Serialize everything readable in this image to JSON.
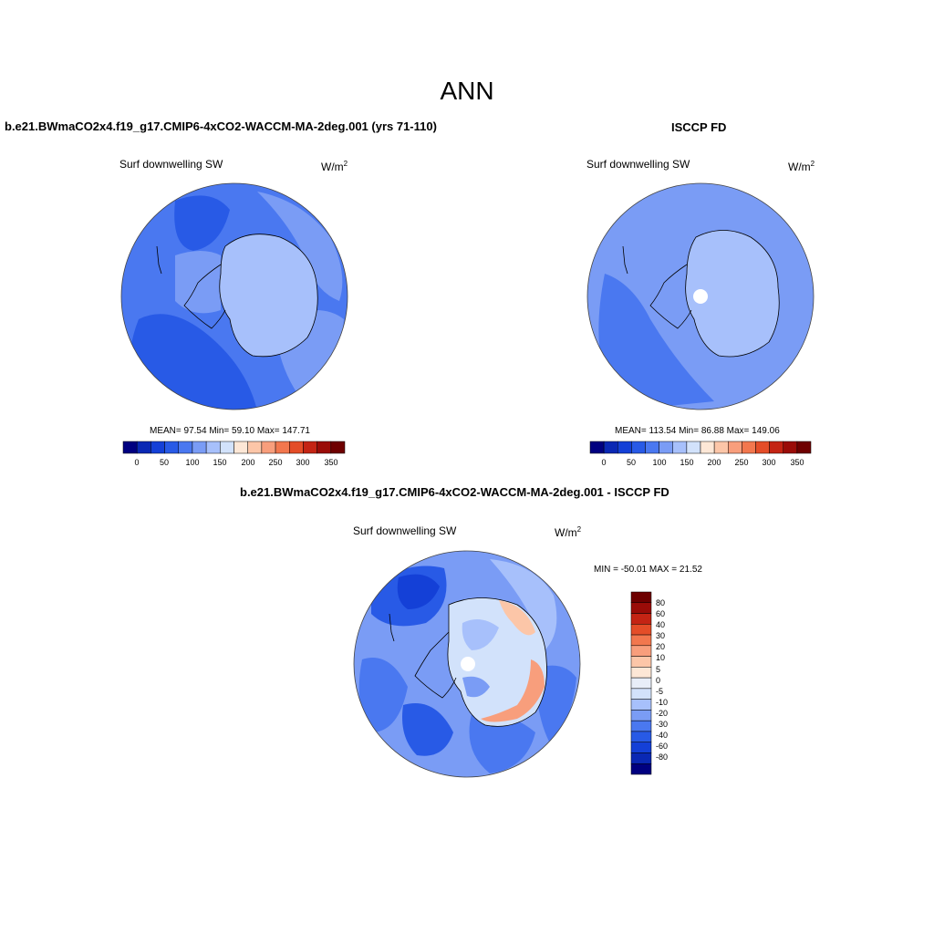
{
  "title": "ANN",
  "colors": {
    "abs_scale": [
      "#000080",
      "#0a28b4",
      "#1440d7",
      "#285ae6",
      "#4a78f0",
      "#7a9cf5",
      "#a7c0fb",
      "#d2e2fb",
      "#fde7d6",
      "#fcc6a8",
      "#f89e7c",
      "#f2774e",
      "#e44d28",
      "#c42414",
      "#9a0c08",
      "#6e0000"
    ],
    "diff_scale": [
      "#6e0000",
      "#9a0c08",
      "#c42414",
      "#e44d28",
      "#f2774e",
      "#f89e7c",
      "#fcc6a8",
      "#fde7d6",
      "#e8eef8",
      "#d2e2fb",
      "#a7c0fb",
      "#7a9cf5",
      "#4a78f0",
      "#285ae6",
      "#1440d7",
      "#0a28b4",
      "#000080"
    ]
  },
  "panels": [
    {
      "title": "b.e21.BWmaCO2x4.f19_g17.CMIP6-4xCO2-WACCM-MA-2deg.001 (yrs 71-110)",
      "variable": "Surf downwelling SW",
      "unit": "W/m",
      "unit_exp": "2",
      "stats": "MEAN=  97.54  Min=  59.10  Max= 147.71",
      "colorbar_ticks": [
        "0",
        "50",
        "100",
        "150",
        "200",
        "250",
        "300",
        "350"
      ]
    },
    {
      "title": "ISCCP FD",
      "variable": "Surf downwelling SW",
      "unit": "W/m",
      "unit_exp": "2",
      "stats": "MEAN= 113.54  Min=  86.88  Max= 149.06",
      "colorbar_ticks": [
        "0",
        "50",
        "100",
        "150",
        "200",
        "250",
        "300",
        "350"
      ]
    },
    {
      "title": "b.e21.BWmaCO2x4.f19_g17.CMIP6-4xCO2-WACCM-MA-2deg.001 - ISCCP FD",
      "variable": "Surf downwelling SW",
      "unit": "W/m",
      "unit_exp": "2",
      "stats": "MIN = -50.01 MAX =  21.52",
      "colorbar_ticks": [
        "80",
        "60",
        "40",
        "30",
        "20",
        "10",
        "5",
        "0",
        "-5",
        "-10",
        "-20",
        "-30",
        "-40",
        "-60",
        "-80"
      ]
    }
  ]
}
